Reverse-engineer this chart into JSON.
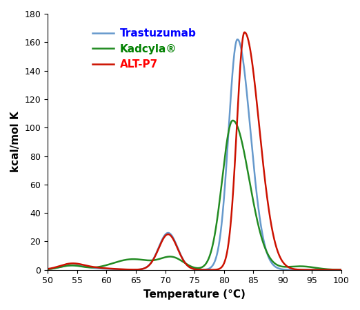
{
  "title": "",
  "xlabel": "Temperature (°C)",
  "ylabel": "kcal/mol K",
  "xlim": [
    50,
    100
  ],
  "ylim": [
    0,
    180
  ],
  "xticks": [
    50,
    55,
    60,
    65,
    70,
    75,
    80,
    85,
    90,
    95,
    100
  ],
  "yticks": [
    0,
    20,
    40,
    60,
    80,
    100,
    120,
    140,
    160,
    180
  ],
  "legend": [
    {
      "label": "Trastuzumab",
      "text_color": "#0000FF"
    },
    {
      "label": "Kadcyla®",
      "text_color": "#008000"
    },
    {
      "label": "ALT-P7",
      "text_color": "#FF0000"
    }
  ],
  "trastuzumab_color": "#6699CC",
  "kadcyla_color": "#228B22",
  "altp7_color": "#CC1100",
  "background_color": "#ffffff"
}
